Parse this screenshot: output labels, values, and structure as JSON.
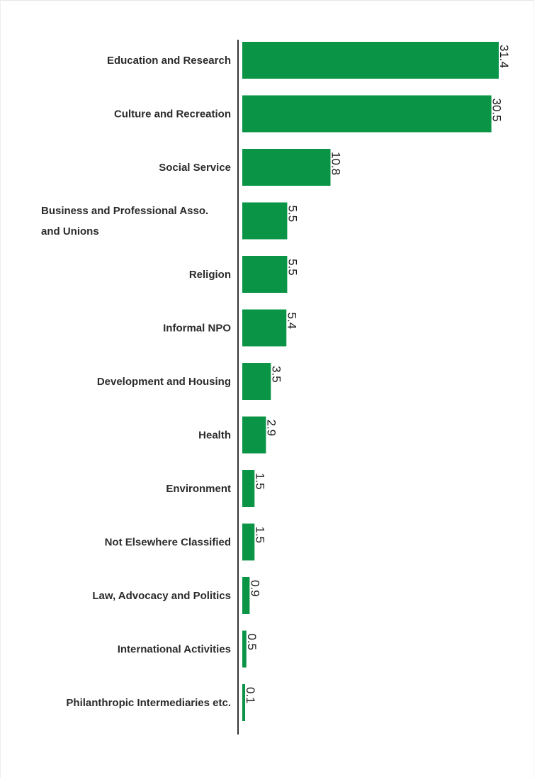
{
  "chart_data": {
    "type": "bar",
    "orientation": "horizontal",
    "categories": [
      "Education and Research",
      "Culture and Recreation",
      "Social Service",
      "Business and Professional Asso. and Unions",
      "Religion",
      "Informal NPO",
      "Development and Housing",
      "Health",
      "Environment",
      "Not Elsewhere Classified",
      "Law, Advocacy and Politics",
      "International Activities",
      "Philanthropic Intermediaries etc."
    ],
    "category_lines": [
      [
        "Education and Research"
      ],
      [
        "Culture and Recreation"
      ],
      [
        "Social Service"
      ],
      [
        "Business and Professional Asso.",
        "and Unions"
      ],
      [
        "Religion"
      ],
      [
        "Informal NPO"
      ],
      [
        "Development and Housing"
      ],
      [
        "Health"
      ],
      [
        "Environment"
      ],
      [
        "Not Elsewhere Classified"
      ],
      [
        "Law, Advocacy and Politics"
      ],
      [
        "International Activities"
      ],
      [
        "Philanthropic Intermediaries etc."
      ]
    ],
    "values": [
      31.4,
      30.5,
      10.8,
      5.5,
      5.5,
      5.4,
      3.5,
      2.9,
      1.5,
      1.5,
      0.9,
      0.5,
      0.1
    ],
    "value_labels": [
      "31.4",
      "30.5",
      "10.8",
      "5.5",
      "5.5",
      "5.4",
      "3.5",
      "2.9",
      "1.5",
      "1.5",
      "0.9",
      "0.5",
      "0.1"
    ],
    "value_label_rotation": "90 degrees clockwise",
    "xlim": [
      0,
      31.4
    ],
    "title": "",
    "xlabel": "",
    "ylabel": "",
    "grid": false,
    "legend": "none",
    "colors": {
      "bar": "#0a9446",
      "axis": "#333333",
      "label": "#2b2b2b"
    }
  }
}
